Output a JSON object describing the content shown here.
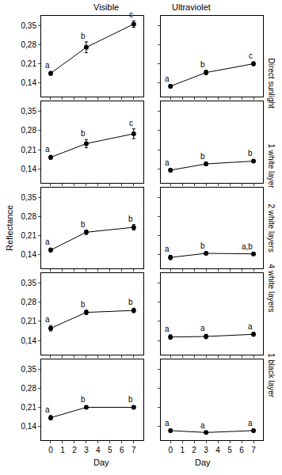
{
  "chart_data": {
    "type": "line",
    "x_label": "Day",
    "y_label": "Reflectance",
    "columns": [
      "Visible",
      "Ultraviolet"
    ],
    "rows": [
      "Direct sunlight",
      "1 white layer",
      "2 white layers",
      "4 white layers",
      "1 black layer"
    ],
    "x": [
      0,
      3,
      7
    ],
    "xlim": [
      -0.8,
      7.8
    ],
    "xticks": [
      0,
      1,
      2,
      3,
      4,
      5,
      6,
      7
    ],
    "ylim": [
      0.09,
      0.385
    ],
    "yticks": [
      {
        "value": 0.14,
        "label": "0,14"
      },
      {
        "value": 0.21,
        "label": "0,21"
      },
      {
        "value": 0.28,
        "label": "0,28"
      },
      {
        "value": 0.35,
        "label": "0,35"
      }
    ],
    "color": "#000000",
    "marker": "circle",
    "grid": false,
    "tick_labels": true,
    "panels": [
      {
        "row": "Direct sunlight",
        "column": "Visible",
        "values": [
          0.175,
          0.27,
          0.355
        ],
        "errors": [
          0.007,
          0.02,
          0.012
        ],
        "letters": [
          "a",
          "b",
          "c"
        ]
      },
      {
        "row": "Direct sunlight",
        "column": "Ultraviolet",
        "values": [
          0.128,
          0.178,
          0.21
        ],
        "errors": [
          0.006,
          0.008,
          0.007
        ],
        "letters": [
          "a",
          "b",
          "c"
        ]
      },
      {
        "row": "1 white layer",
        "column": "Visible",
        "values": [
          0.182,
          0.232,
          0.268
        ],
        "errors": [
          0.007,
          0.015,
          0.018
        ],
        "letters": [
          "a",
          "b",
          "c"
        ]
      },
      {
        "row": "1 white layer",
        "column": "Ultraviolet",
        "values": [
          0.135,
          0.158,
          0.168
        ],
        "errors": [
          0.006,
          0.007,
          0.006
        ],
        "letters": [
          "a",
          "b",
          "b"
        ]
      },
      {
        "row": "2 white layers",
        "column": "Visible",
        "values": [
          0.157,
          0.222,
          0.24
        ],
        "errors": [
          0.007,
          0.008,
          0.01
        ],
        "letters": [
          "a",
          "b",
          "b"
        ]
      },
      {
        "row": "2 white layers",
        "column": "Ultraviolet",
        "values": [
          0.13,
          0.145,
          0.143
        ],
        "errors": [
          0.008,
          0.005,
          0.006
        ],
        "letters": [
          "a",
          "b",
          "a,b"
        ]
      },
      {
        "row": "4 white layers",
        "column": "Visible",
        "values": [
          0.185,
          0.243,
          0.25
        ],
        "errors": [
          0.01,
          0.008,
          0.008
        ],
        "letters": [
          "a",
          "b",
          "b"
        ]
      },
      {
        "row": "4 white layers",
        "column": "Ultraviolet",
        "values": [
          0.153,
          0.155,
          0.163
        ],
        "errors": [
          0.008,
          0.008,
          0.007
        ],
        "letters": [
          "a",
          "a",
          "a"
        ]
      },
      {
        "row": "1 black layer",
        "column": "Visible",
        "values": [
          0.172,
          0.21,
          0.21
        ],
        "errors": [
          0.008,
          0.006,
          0.006
        ],
        "letters": [
          "a",
          "b",
          "b"
        ]
      },
      {
        "row": "1 black layer",
        "column": "Ultraviolet",
        "values": [
          0.125,
          0.118,
          0.125
        ],
        "errors": [
          0.005,
          0.005,
          0.005
        ],
        "letters": [
          "a",
          "a",
          "a"
        ]
      }
    ]
  }
}
